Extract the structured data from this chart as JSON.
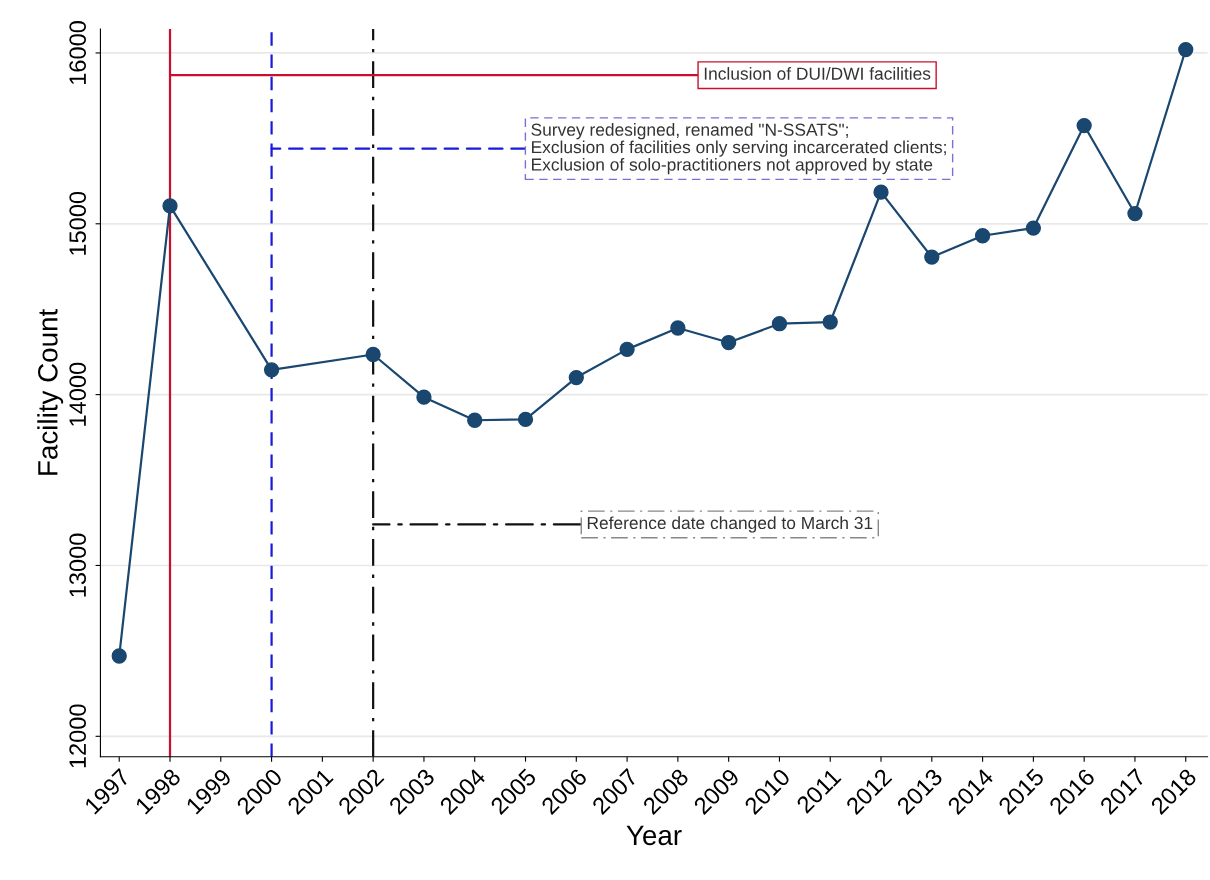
{
  "chart_data": {
    "type": "line",
    "xlabel": "Year",
    "ylabel": "Facility Count",
    "xlim": [
      1996.63,
      2018.43
    ],
    "ylim": [
      11880,
      16140
    ],
    "xticks": [
      1997,
      1998,
      1999,
      2000,
      2001,
      2002,
      2003,
      2004,
      2005,
      2006,
      2007,
      2008,
      2009,
      2010,
      2011,
      2012,
      2013,
      2014,
      2015,
      2016,
      2017,
      2018
    ],
    "yticks": [
      12000,
      13000,
      14000,
      15000,
      16000
    ],
    "grid": "y",
    "marker": "circle",
    "line_style": "solid",
    "series": [
      {
        "color": "#1a476f",
        "x": [
          1997,
          1998,
          2000,
          2002,
          2003,
          2004,
          2005,
          2006,
          2007,
          2008,
          2009,
          2010,
          2011,
          2012,
          2013,
          2014,
          2015,
          2016,
          2017,
          2018
        ],
        "values": [
          12470,
          15105,
          14145,
          14235,
          13985,
          13850,
          13855,
          14100,
          14265,
          14390,
          14305,
          14415,
          14425,
          15185,
          14805,
          14930,
          14975,
          15575,
          15060,
          16020
        ]
      }
    ],
    "ref_lines": [
      {
        "axis": "x",
        "value": 1998,
        "color": "#c8102e",
        "line_style": "solid"
      },
      {
        "axis": "x",
        "value": 2000,
        "color": "#1a1adb",
        "line_style": "dashed"
      },
      {
        "axis": "x",
        "value": 2002,
        "color": "#111111",
        "line_style": "dashdot"
      }
    ],
    "annotations": [
      {
        "text": "Inclusion of DUI/DWI facilities",
        "x": 1998,
        "y": 15870
      },
      {
        "text": "Survey redesigned, renamed \"N-SSATS\";\nExclusion of facilities only serving incarcerated clients;\nExclusion of solo-practitioners not approved by state",
        "x": 2000,
        "y": 15440
      },
      {
        "text": "Reference date changed to March 31",
        "x": 2002,
        "y": 13240
      }
    ]
  }
}
